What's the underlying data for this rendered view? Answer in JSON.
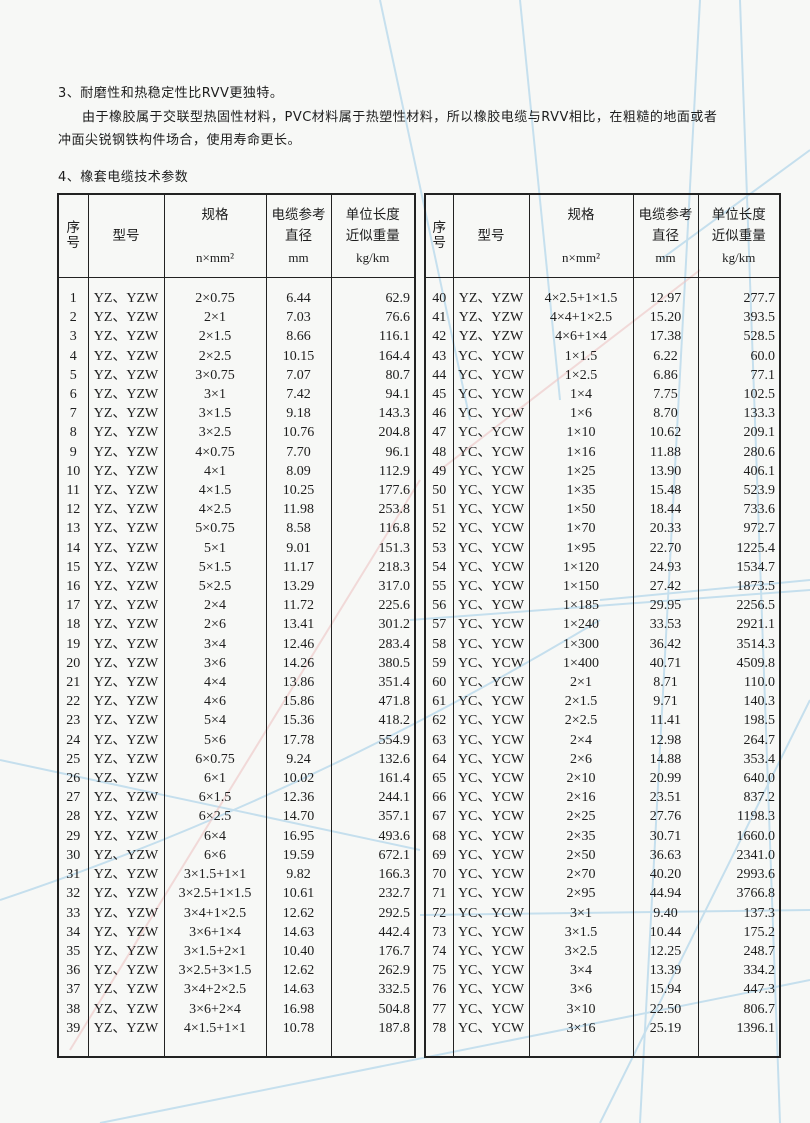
{
  "intro": {
    "point3_title": "3、耐磨性和热稳定性比RVV更独特。",
    "point3_body_line1": "由于橡胶属于交联型热固性材料，PVC材料属于热塑性材料，所以橡胶电缆与RVV相比，在粗糙的地面或者",
    "point3_body_line2": "冲面尖锐钢铁构件场合，使用寿命更长。",
    "point4_title": "4、橡套电缆技术参数"
  },
  "table_headers": {
    "no": "序号",
    "model": "型号",
    "spec": "规格",
    "spec_unit": "n×mm²",
    "diameter_line1": "电缆参考",
    "diameter_line2": "直径",
    "diameter_unit": "mm",
    "weight_line1": "单位长度",
    "weight_line2": "近似重量",
    "weight_unit": "kg/km"
  },
  "left_rows": [
    [
      "1",
      "YZ、YZW",
      "2×0.75",
      "6.44",
      "62.9"
    ],
    [
      "2",
      "YZ、YZW",
      "2×1",
      "7.03",
      "76.6"
    ],
    [
      "3",
      "YZ、YZW",
      "2×1.5",
      "8.66",
      "116.1"
    ],
    [
      "4",
      "YZ、YZW",
      "2×2.5",
      "10.15",
      "164.4"
    ],
    [
      "5",
      "YZ、YZW",
      "3×0.75",
      "7.07",
      "80.7"
    ],
    [
      "6",
      "YZ、YZW",
      "3×1",
      "7.42",
      "94.1"
    ],
    [
      "7",
      "YZ、YZW",
      "3×1.5",
      "9.18",
      "143.3"
    ],
    [
      "8",
      "YZ、YZW",
      "3×2.5",
      "10.76",
      "204.8"
    ],
    [
      "9",
      "YZ、YZW",
      "4×0.75",
      "7.70",
      "96.1"
    ],
    [
      "10",
      "YZ、YZW",
      "4×1",
      "8.09",
      "112.9"
    ],
    [
      "11",
      "YZ、YZW",
      "4×1.5",
      "10.25",
      "177.6"
    ],
    [
      "12",
      "YZ、YZW",
      "4×2.5",
      "11.98",
      "253.8"
    ],
    [
      "13",
      "YZ、YZW",
      "5×0.75",
      "8.58",
      "116.8"
    ],
    [
      "14",
      "YZ、YZW",
      "5×1",
      "9.01",
      "151.3"
    ],
    [
      "15",
      "YZ、YZW",
      "5×1.5",
      "11.17",
      "218.3"
    ],
    [
      "16",
      "YZ、YZW",
      "5×2.5",
      "13.29",
      "317.0"
    ],
    [
      "17",
      "YZ、YZW",
      "2×4",
      "11.72",
      "225.6"
    ],
    [
      "18",
      "YZ、YZW",
      "2×6",
      "13.41",
      "301.2"
    ],
    [
      "19",
      "YZ、YZW",
      "3×4",
      "12.46",
      "283.4"
    ],
    [
      "20",
      "YZ、YZW",
      "3×6",
      "14.26",
      "380.5"
    ],
    [
      "21",
      "YZ、YZW",
      "4×4",
      "13.86",
      "351.4"
    ],
    [
      "22",
      "YZ、YZW",
      "4×6",
      "15.86",
      "471.8"
    ],
    [
      "23",
      "YZ、YZW",
      "5×4",
      "15.36",
      "418.2"
    ],
    [
      "24",
      "YZ、YZW",
      "5×6",
      "17.78",
      "554.9"
    ],
    [
      "25",
      "YZ、YZW",
      "6×0.75",
      "9.24",
      "132.6"
    ],
    [
      "26",
      "YZ、YZW",
      "6×1",
      "10.02",
      "161.4"
    ],
    [
      "27",
      "YZ、YZW",
      "6×1.5",
      "12.36",
      "244.1"
    ],
    [
      "28",
      "YZ、YZW",
      "6×2.5",
      "14.70",
      "357.1"
    ],
    [
      "29",
      "YZ、YZW",
      "6×4",
      "16.95",
      "493.6"
    ],
    [
      "30",
      "YZ、YZW",
      "6×6",
      "19.59",
      "672.1"
    ],
    [
      "31",
      "YZ、YZW",
      "3×1.5+1×1",
      "9.82",
      "166.3"
    ],
    [
      "32",
      "YZ、YZW",
      "3×2.5+1×1.5",
      "10.61",
      "232.7"
    ],
    [
      "33",
      "YZ、YZW",
      "3×4+1×2.5",
      "12.62",
      "292.5"
    ],
    [
      "34",
      "YZ、YZW",
      "3×6+1×4",
      "14.63",
      "442.4"
    ],
    [
      "35",
      "YZ、YZW",
      "3×1.5+2×1",
      "10.40",
      "176.7"
    ],
    [
      "36",
      "YZ、YZW",
      "3×2.5+3×1.5",
      "12.62",
      "262.9"
    ],
    [
      "37",
      "YZ、YZW",
      "3×4+2×2.5",
      "14.63",
      "332.5"
    ],
    [
      "38",
      "YZ、YZW",
      "3×6+2×4",
      "16.98",
      "504.8"
    ],
    [
      "39",
      "YZ、YZW",
      "4×1.5+1×1",
      "10.78",
      "187.8"
    ]
  ],
  "right_rows": [
    [
      "40",
      "YZ、YZW",
      "4×2.5+1×1.5",
      "12.97",
      "277.7"
    ],
    [
      "41",
      "YZ、YZW",
      "4×4+1×2.5",
      "15.20",
      "393.5"
    ],
    [
      "42",
      "YZ、YZW",
      "4×6+1×4",
      "17.38",
      "528.5"
    ],
    [
      "43",
      "YC、YCW",
      "1×1.5",
      "6.22",
      "60.0"
    ],
    [
      "44",
      "YC、YCW",
      "1×2.5",
      "6.86",
      "77.1"
    ],
    [
      "45",
      "YC、YCW",
      "1×4",
      "7.75",
      "102.5"
    ],
    [
      "46",
      "YC、YCW",
      "1×6",
      "8.70",
      "133.3"
    ],
    [
      "47",
      "YC、YCW",
      "1×10",
      "10.62",
      "209.1"
    ],
    [
      "48",
      "YC、YCW",
      "1×16",
      "11.88",
      "280.6"
    ],
    [
      "49",
      "YC、YCW",
      "1×25",
      "13.90",
      "406.1"
    ],
    [
      "50",
      "YC、YCW",
      "1×35",
      "15.48",
      "523.9"
    ],
    [
      "51",
      "YC、YCW",
      "1×50",
      "18.44",
      "733.6"
    ],
    [
      "52",
      "YC、YCW",
      "1×70",
      "20.33",
      "972.7"
    ],
    [
      "53",
      "YC、YCW",
      "1×95",
      "22.70",
      "1225.4"
    ],
    [
      "54",
      "YC、YCW",
      "1×120",
      "24.93",
      "1534.7"
    ],
    [
      "55",
      "YC、YCW",
      "1×150",
      "27.42",
      "1873.5"
    ],
    [
      "56",
      "YC、YCW",
      "1×185",
      "29.95",
      "2256.5"
    ],
    [
      "57",
      "YC、YCW",
      "1×240",
      "33.53",
      "2921.1"
    ],
    [
      "58",
      "YC、YCW",
      "1×300",
      "36.42",
      "3514.3"
    ],
    [
      "59",
      "YC、YCW",
      "1×400",
      "40.71",
      "4509.8"
    ],
    [
      "60",
      "YC、YCW",
      "2×1",
      "8.71",
      "110.0"
    ],
    [
      "61",
      "YC、YCW",
      "2×1.5",
      "9.71",
      "140.3"
    ],
    [
      "62",
      "YC、YCW",
      "2×2.5",
      "11.41",
      "198.5"
    ],
    [
      "63",
      "YC、YCW",
      "2×4",
      "12.98",
      "264.7"
    ],
    [
      "64",
      "YC、YCW",
      "2×6",
      "14.88",
      "353.4"
    ],
    [
      "65",
      "YC、YCW",
      "2×10",
      "20.99",
      "640.0"
    ],
    [
      "66",
      "YC、YCW",
      "2×16",
      "23.51",
      "837.2"
    ],
    [
      "67",
      "YC、YCW",
      "2×25",
      "27.76",
      "1198.3"
    ],
    [
      "68",
      "YC、YCW",
      "2×35",
      "30.71",
      "1660.0"
    ],
    [
      "69",
      "YC、YCW",
      "2×50",
      "36.63",
      "2341.0"
    ],
    [
      "70",
      "YC、YCW",
      "2×70",
      "40.20",
      "2993.6"
    ],
    [
      "71",
      "YC、YCW",
      "2×95",
      "44.94",
      "3766.8"
    ],
    [
      "72",
      "YC、YCW",
      "3×1",
      "9.40",
      "137.3"
    ],
    [
      "73",
      "YC、YCW",
      "3×1.5",
      "10.44",
      "175.2"
    ],
    [
      "74",
      "YC、YCW",
      "3×2.5",
      "12.25",
      "248.7"
    ],
    [
      "75",
      "YC、YCW",
      "3×4",
      "13.39",
      "334.2"
    ],
    [
      "76",
      "YC、YCW",
      "3×6",
      "15.94",
      "447.3"
    ],
    [
      "77",
      "YC、YCW",
      "3×10",
      "22.50",
      "806.7"
    ],
    [
      "78",
      "YC、YCW",
      "3×16",
      "25.19",
      "1396.1"
    ]
  ],
  "colors": {
    "background": "#f7f8f6",
    "watermark_lines": "#a9cfe6",
    "text": "#1d1d1d"
  }
}
